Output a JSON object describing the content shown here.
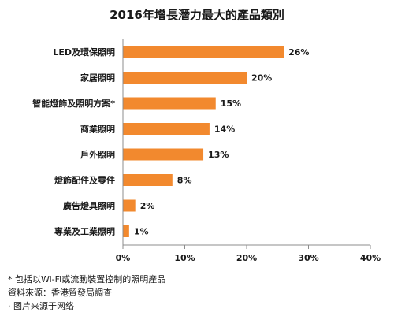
{
  "chart_data": {
    "type": "bar",
    "orientation": "horizontal",
    "title": "2016年增長潛力最大的產品類別",
    "categories": [
      "LED及環保照明",
      "家居照明",
      "智能燈飾及照明方案*",
      "商業照明",
      "戶外照明",
      "燈飾配件及零件",
      "廣告燈具照明",
      "專業及工業照明"
    ],
    "values": [
      26,
      20,
      15,
      14,
      13,
      8,
      2,
      1
    ],
    "value_labels": [
      "26%",
      "20%",
      "15%",
      "14%",
      "13%",
      "8%",
      "2%",
      "1%"
    ],
    "xlim": [
      0,
      40
    ],
    "x_ticks": [
      0,
      10,
      20,
      30,
      40
    ],
    "x_tick_labels": [
      "0%",
      "10%",
      "20%",
      "30%",
      "40%"
    ],
    "grid": false,
    "bar_color": "#F2892E"
  },
  "notes": {
    "footnote": "* 包括以Wi-Fi或流動裝置控制的照明產品",
    "source": "資料來源：香港貿發局調查",
    "image_source": "· 图片来源于网络"
  }
}
